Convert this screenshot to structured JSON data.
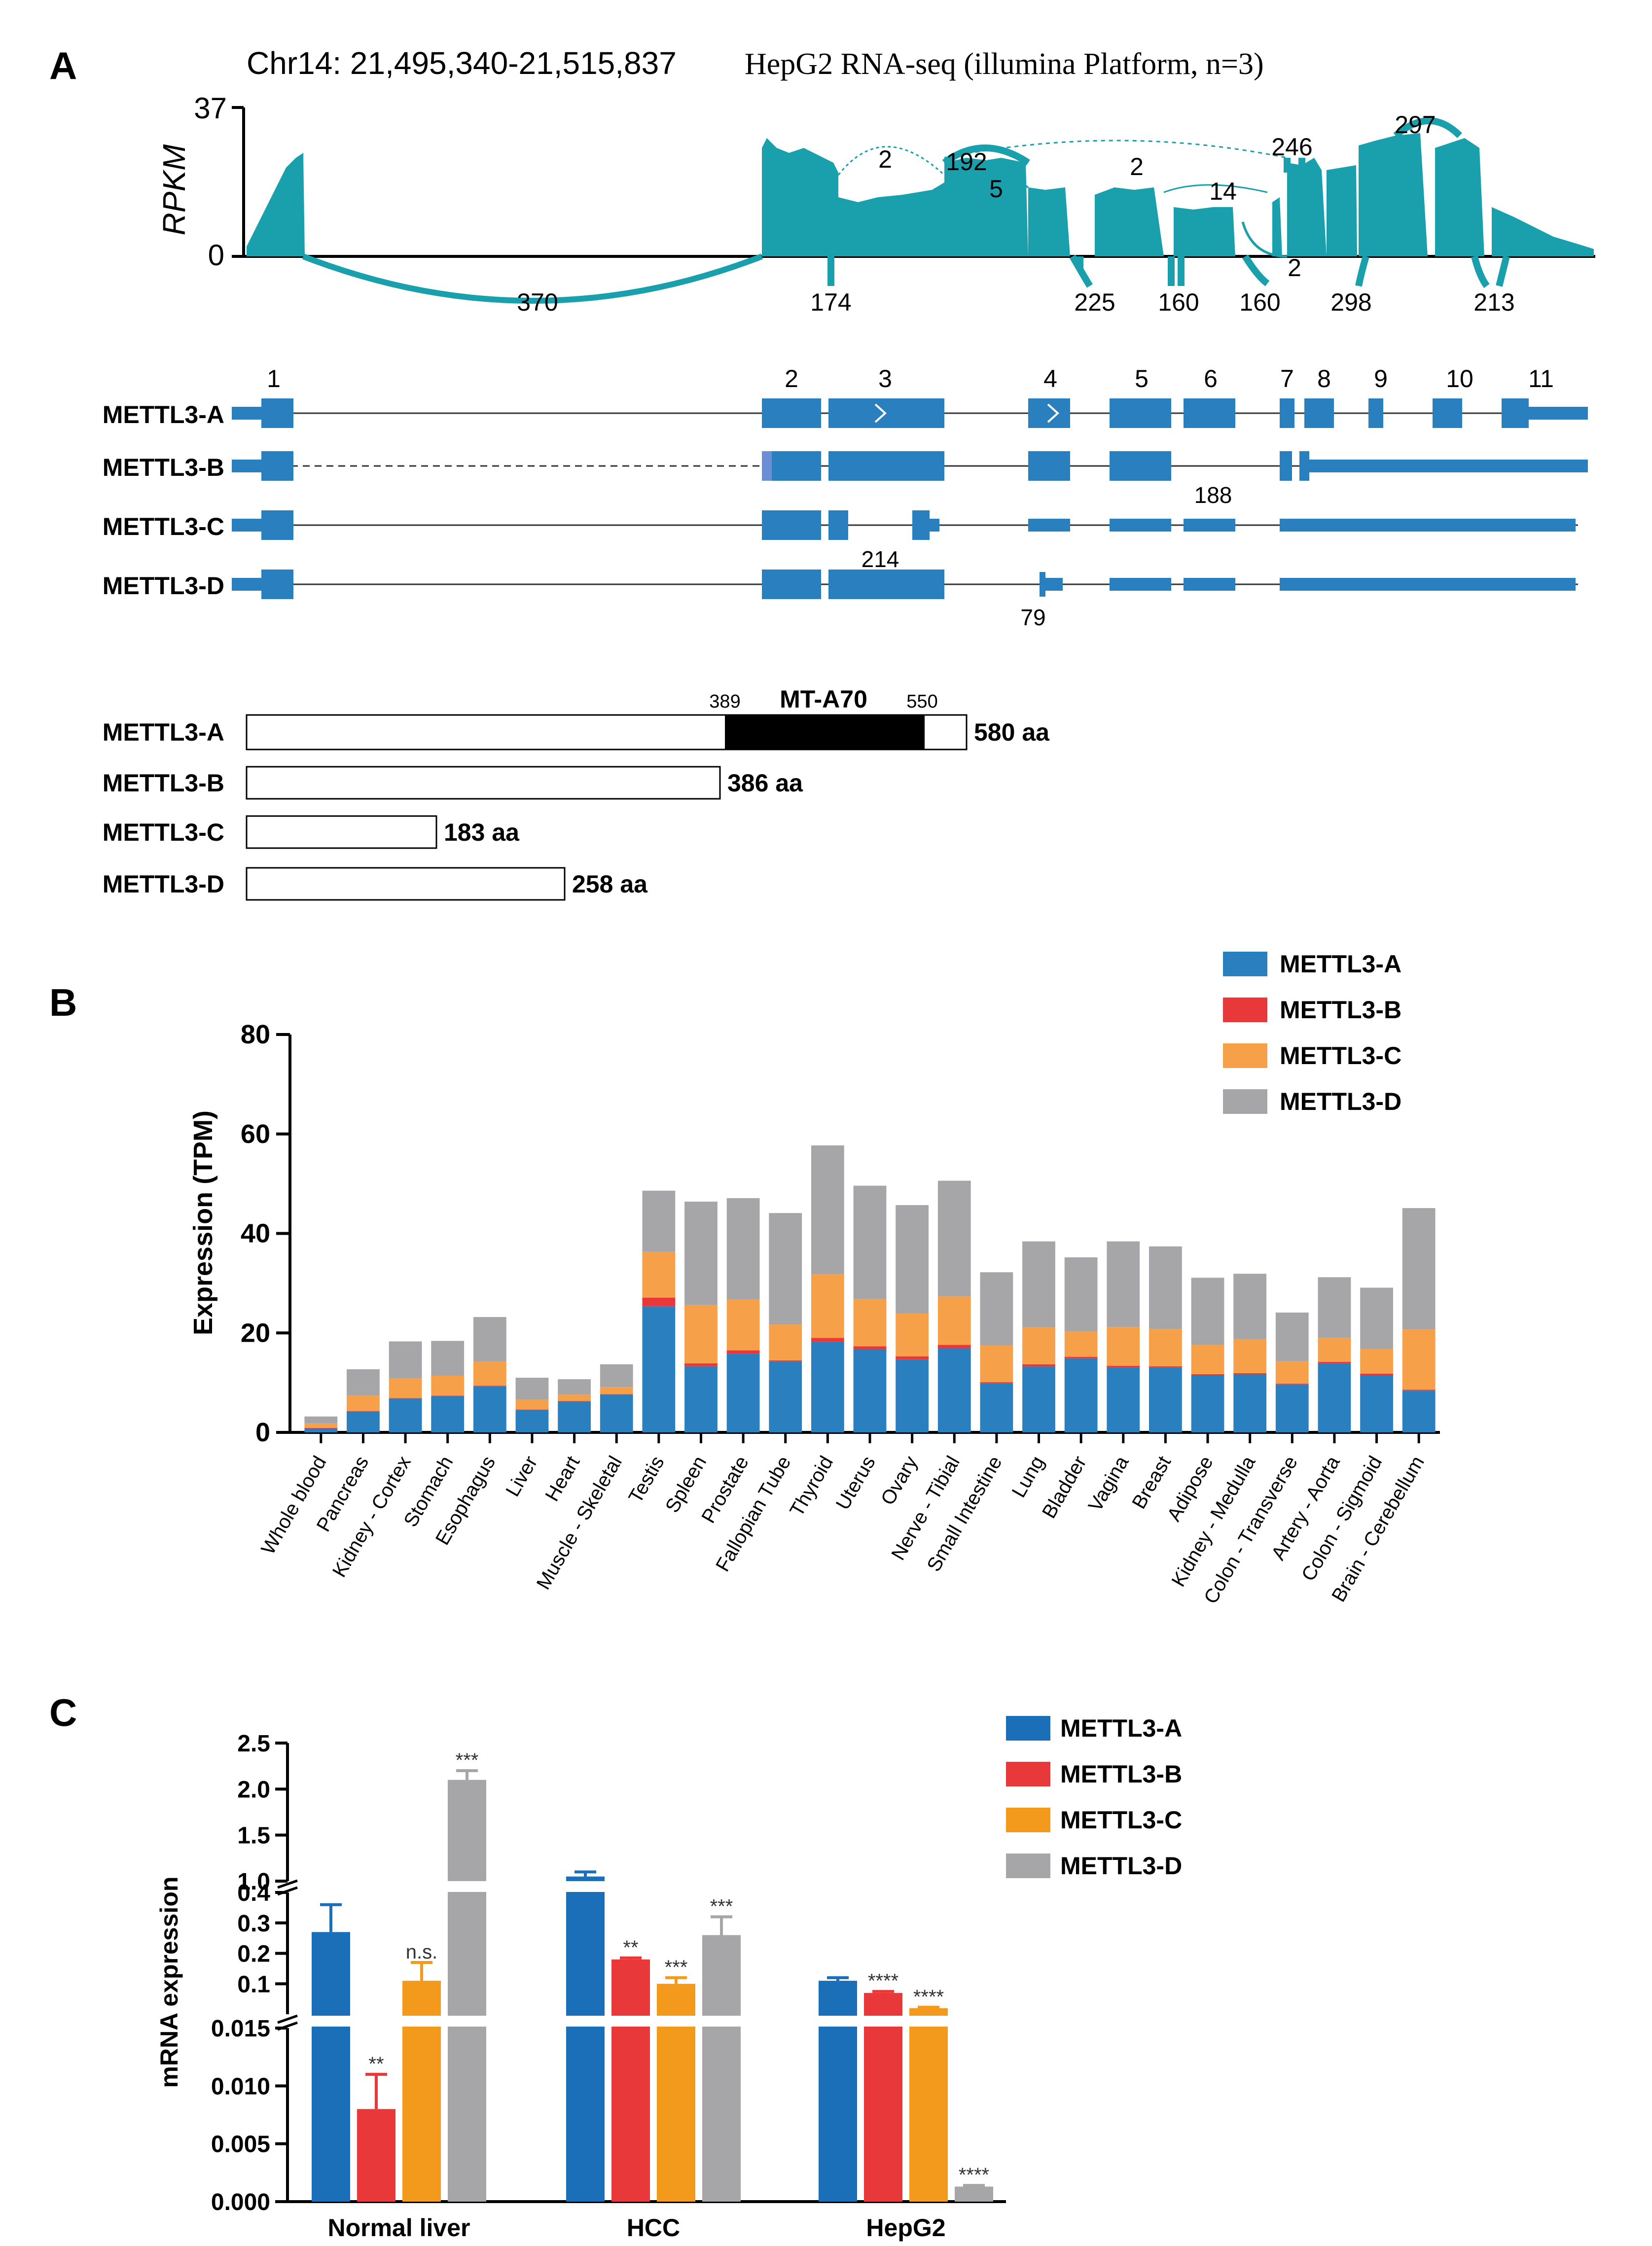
{
  "colors": {
    "teal": "#1a9fad",
    "blue": "#2a7fbf",
    "blue_dark": "#1a6fb8",
    "red": "#e8383a",
    "orange": "#f7a04a",
    "orange_c": "#f39a1c",
    "gray": "#a6a6a8"
  },
  "panel_a": {
    "letter": "A",
    "coords": "Chr14: 21,495,340-21,515,837",
    "dataset": "HepG2  RNA-seq (illumina Platform, n=3)",
    "yaxis_label": "RPKM",
    "ymax": "37",
    "ymin": "0",
    "junctions_above": [
      "2",
      "192",
      "5",
      "2",
      "14",
      "246",
      "297"
    ],
    "junctions_below": [
      "370",
      "174",
      "225",
      "160",
      "160",
      "2",
      "298",
      "213"
    ],
    "exon_numbers": [
      "1",
      "2",
      "3",
      "4",
      "5",
      "6",
      "7",
      "8",
      "9",
      "10",
      "11"
    ],
    "isoforms": [
      "METTL3-A",
      "METTL3-B",
      "METTL3-C",
      "METTL3-D"
    ],
    "isoform_notes": [
      "188",
      "214",
      "79"
    ],
    "proteins": [
      {
        "name": "METTL3-A",
        "length": "580 aa"
      },
      {
        "name": "METTL3-B",
        "length": "386 aa"
      },
      {
        "name": "METTL3-C",
        "length": "183 aa"
      },
      {
        "name": "METTL3-D",
        "length": "258 aa"
      }
    ],
    "domain": {
      "name": "MT-A70",
      "start": "389",
      "end": "550"
    }
  },
  "panel_b_letter": "B",
  "panel_c_letter": "C",
  "chart_data": [
    {
      "type": "bar",
      "stacked": true,
      "title": "",
      "xlabel": "",
      "ylabel": "Expression (TPM)",
      "ylim": [
        0,
        80
      ],
      "yticks": [
        "0",
        "20",
        "40",
        "60",
        "80"
      ],
      "legend_position": "top-right",
      "categories": [
        "Whole blood",
        "Pancreas",
        "Kidney - Cortex",
        "Stomach",
        "Esophagus",
        "Liver",
        "Heart",
        "Muscle - Skeletal",
        "Testis",
        "Spleen",
        "Prostate",
        "Fallopian Tube",
        "Thyroid",
        "Uterus",
        "Ovary",
        "Nerve - Tibial",
        "Small Intestine",
        "Lung",
        "Bladder",
        "Vagina",
        "Breast",
        "Adipose",
        "Kidney - Medulla",
        "Colon - Transverse",
        "Artery - Aorta",
        "Colon - Sigmoid",
        "Brain - Cerebellum"
      ],
      "series": [
        {
          "name": "METTL3-A",
          "color": "#2a7fbf",
          "values": [
            0.8,
            4.2,
            6.8,
            7.3,
            9.3,
            4.5,
            6.2,
            7.6,
            25.3,
            13.3,
            15.8,
            14.3,
            18.2,
            16.7,
            14.6,
            16.9,
            9.9,
            13.2,
            14.9,
            13.1,
            13.0,
            11.5,
            11.6,
            9.6,
            13.9,
            11.5,
            8.4
          ]
        },
        {
          "name": "METTL3-B",
          "color": "#e8383a",
          "values": [
            0.1,
            0.1,
            0.1,
            0.1,
            0.1,
            0.1,
            0.1,
            0.1,
            1.8,
            0.6,
            0.7,
            0.2,
            0.8,
            0.6,
            0.7,
            0.7,
            0.2,
            0.5,
            0.3,
            0.3,
            0.3,
            0.2,
            0.3,
            0.2,
            0.3,
            0.3,
            0.2
          ]
        },
        {
          "name": "METTL3-C",
          "color": "#f7a04a",
          "values": [
            0.9,
            3.1,
            4.0,
            4.0,
            4.8,
            2.0,
            1.3,
            1.4,
            9.2,
            11.7,
            10.2,
            7.2,
            12.8,
            9.5,
            8.6,
            9.7,
            7.4,
            7.4,
            5.1,
            7.8,
            7.5,
            5.9,
            6.8,
            4.5,
            4.8,
            5.0,
            12.1
          ]
        },
        {
          "name": "METTL3-D",
          "color": "#a6a6a8",
          "values": [
            1.4,
            5.3,
            7.4,
            7.0,
            9.0,
            4.4,
            3.1,
            4.6,
            12.3,
            20.8,
            20.4,
            22.4,
            25.9,
            22.8,
            21.8,
            23.3,
            14.7,
            17.3,
            14.9,
            17.2,
            16.6,
            13.5,
            13.2,
            9.8,
            12.2,
            12.3,
            24.4
          ]
        }
      ]
    },
    {
      "type": "bar",
      "title": "",
      "xlabel": "",
      "ylabel": "mRNA expression",
      "broken_axis": true,
      "segments": [
        {
          "ylim": [
            0,
            0.015
          ],
          "yticks": [
            "0.000",
            "0.005",
            "0.010",
            "0.015"
          ]
        },
        {
          "ylim": [
            0,
            0.4
          ],
          "yticks": [
            "0.1",
            "0.2",
            "0.3",
            "0.4"
          ]
        },
        {
          "ylim": [
            1.0,
            2.5
          ],
          "yticks": [
            "1.0",
            "1.5",
            "2.0",
            "2.5"
          ]
        }
      ],
      "legend_position": "top-right",
      "categories": [
        "Normal liver",
        "HCC",
        "HepG2"
      ],
      "series": [
        {
          "name": "METTL3-A",
          "color": "#1a6fb8",
          "values": [
            0.27,
            1.05,
            0.11
          ],
          "errors": [
            0.09,
            0.05,
            0.01
          ],
          "sig": [
            "",
            "",
            ""
          ]
        },
        {
          "name": "METTL3-B",
          "color": "#e8383a",
          "values": [
            0.008,
            0.18,
            0.07
          ],
          "errors": [
            0.003,
            0.005,
            0.005
          ],
          "sig": [
            "**",
            "**",
            "****"
          ]
        },
        {
          "name": "METTL3-C",
          "color": "#f39a1c",
          "values": [
            0.11,
            0.1,
            0.02
          ],
          "errors": [
            0.06,
            0.02,
            0.003
          ],
          "sig": [
            "n.s.",
            "***",
            "****"
          ]
        },
        {
          "name": "METTL3-D",
          "color": "#a6a6a8",
          "values": [
            2.1,
            0.26,
            0.0013
          ],
          "errors": [
            0.1,
            0.06,
            0.0001
          ],
          "sig": [
            "***",
            "***",
            "****"
          ]
        }
      ]
    }
  ]
}
